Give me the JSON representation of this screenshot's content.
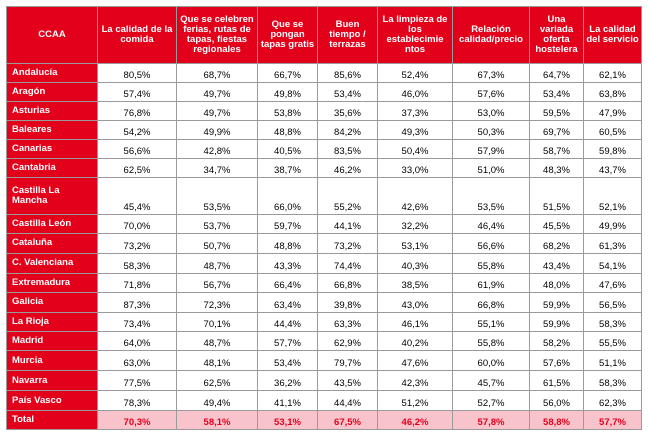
{
  "table": {
    "headers": [
      "CCAA",
      "La calidad de la comida",
      "Que se celebren ferias, rutas de tapas, fiestas regionales",
      "Que se pongan tapas gratis",
      "Buen tiempo / terrazas",
      "La limpieza de los establecimie ntos",
      "Relación calidad/precio",
      "Una variada oferta hostelera",
      "La calidad del servicio"
    ],
    "rows": [
      {
        "region": "Andalucía",
        "values": [
          "80,5%",
          "68,7%",
          "66,7%",
          "85,6%",
          "52,4%",
          "67,3%",
          "64,7%",
          "62,1%"
        ]
      },
      {
        "region": "Aragón",
        "values": [
          "57,4%",
          "49,7%",
          "49,8%",
          "53,4%",
          "46,0%",
          "57,6%",
          "53,4%",
          "63,8%"
        ]
      },
      {
        "region": "Asturias",
        "values": [
          "76,8%",
          "49,7%",
          "53,8%",
          "35,6%",
          "37,3%",
          "53,0%",
          "59,5%",
          "47,9%"
        ]
      },
      {
        "region": "Baleares",
        "values": [
          "54,2%",
          "49,9%",
          "48,8%",
          "84,2%",
          "49,3%",
          "50,3%",
          "69,7%",
          "60,5%"
        ]
      },
      {
        "region": "Canarias",
        "values": [
          "56,6%",
          "42,8%",
          "40,5%",
          "83,5%",
          "50,4%",
          "57,9%",
          "58,7%",
          "59,8%"
        ]
      },
      {
        "region": "Cantabria",
        "values": [
          "62,5%",
          "34,7%",
          "38,7%",
          "46,2%",
          "33,0%",
          "51,0%",
          "48,3%",
          "43,7%"
        ]
      },
      {
        "region": "Castilla La Mancha",
        "values": [
          "45,4%",
          "53,5%",
          "66,0%",
          "55,2%",
          "42,6%",
          "53,5%",
          "51,5%",
          "52,1%"
        ]
      },
      {
        "region": "Castilla León",
        "values": [
          "70,0%",
          "53,7%",
          "59,7%",
          "44,1%",
          "32,2%",
          "46,4%",
          "45,5%",
          "49,9%"
        ]
      },
      {
        "region": "Cataluña",
        "values": [
          "73,2%",
          "50,7%",
          "48,8%",
          "73,2%",
          "53,1%",
          "56,6%",
          "68,2%",
          "61,3%"
        ]
      },
      {
        "region": "C. Valenciana",
        "values": [
          "58,3%",
          "48,7%",
          "43,3%",
          "74,4%",
          "40,3%",
          "55,8%",
          "43,4%",
          "54,1%"
        ]
      },
      {
        "region": "Extremadura",
        "values": [
          "71,8%",
          "56,7%",
          "66,4%",
          "66,8%",
          "38,5%",
          "61,9%",
          "48,0%",
          "47,6%"
        ]
      },
      {
        "region": "Galicia",
        "values": [
          "87,3%",
          "72,3%",
          "63,4%",
          "39,8%",
          "43,0%",
          "66,8%",
          "59,9%",
          "56,5%"
        ]
      },
      {
        "region": "La Rioja",
        "values": [
          "73,4%",
          "70,1%",
          "44,4%",
          "63,3%",
          "46,1%",
          "55,1%",
          "59,9%",
          "58,3%"
        ]
      },
      {
        "region": "Madrid",
        "values": [
          "64,0%",
          "48,7%",
          "57,7%",
          "62,9%",
          "40,2%",
          "55,8%",
          "58,2%",
          "55,5%"
        ]
      },
      {
        "region": "Murcia",
        "values": [
          "63,0%",
          "48,1%",
          "53,4%",
          "79,7%",
          "47,6%",
          "60,0%",
          "57,6%",
          "51,1%"
        ]
      },
      {
        "region": "Navarra",
        "values": [
          "77,5%",
          "62,5%",
          "36,2%",
          "43,5%",
          "42,3%",
          "45,7%",
          "61,5%",
          "58,3%"
        ]
      },
      {
        "region": "País Vasco",
        "values": [
          "78,3%",
          "49,4%",
          "41,1%",
          "44,4%",
          "51,2%",
          "52,7%",
          "56,0%",
          "62,3%"
        ]
      }
    ],
    "total": {
      "region": "Total",
      "values": [
        "70,3%",
        "58,1%",
        "53,1%",
        "67,5%",
        "46,2%",
        "57,8%",
        "58,8%",
        "57,7%"
      ]
    }
  },
  "colors": {
    "header_bg": "#e3001b",
    "total_bg": "#f9c3cc",
    "total_text": "#e3001b"
  }
}
